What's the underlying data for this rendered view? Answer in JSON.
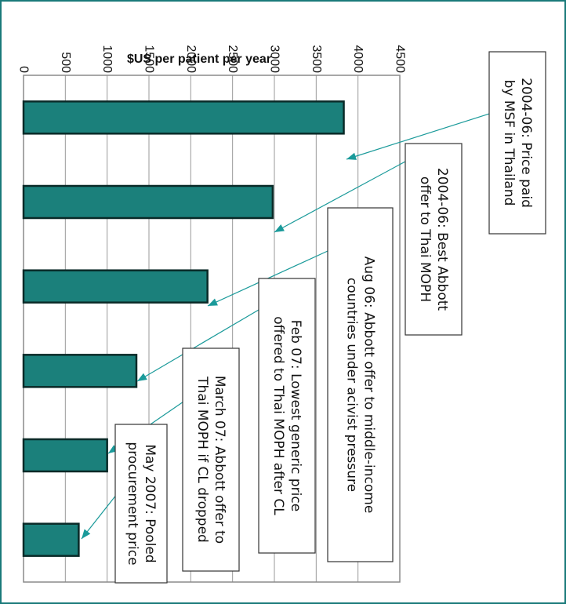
{
  "chart_data": {
    "type": "bar",
    "orientation": "horizontal, figure rotated 90 degrees clockwise",
    "ylabel": "$US per patient per year",
    "ylim": [
      0,
      4500
    ],
    "tick_labels": [
      "0",
      "500",
      "1000",
      "1500",
      "2000",
      "2500",
      "3000",
      "3500",
      "4000",
      "4500"
    ],
    "grid": true,
    "categories": [
      "2004-06: Price paid by MSF in Thailand",
      "2004-06: Best Abbott offer to Thai MOPH",
      "Aug 06: Abbott offer to middle-income countries under acivist pressure",
      "Feb 07: Lowest generic price offered to Thai MOPH after CL",
      "March 07: Abbott offer to Thai MOPH if CL dropped",
      "May 2007: Pooled procurement price"
    ],
    "values": [
      3830,
      2980,
      2200,
      1350,
      1000,
      660
    ],
    "callouts": [
      [
        "2004-06: Price paid",
        "by MSF in Thailand"
      ],
      [
        "2004-06: Best Abbott",
        "offer to Thai MOPH"
      ],
      [
        "Aug 06: Abbott offer to middle-income",
        "countries under acivist pressure"
      ],
      [
        "Feb 07: Lowest generic price",
        "offered to Thai MOPH after CL"
      ],
      [
        "March 07: Abbott offer to",
        "Thai MOPH if CL dropped"
      ],
      [
        "May 2007: Pooled",
        "procurement price"
      ]
    ],
    "colors": {
      "bar": "#1b807b",
      "bar_edge": "#0a2a28",
      "frame": "#1a7a7a",
      "grid": "#9a9a9a",
      "leader": "#1a9a9a"
    }
  }
}
